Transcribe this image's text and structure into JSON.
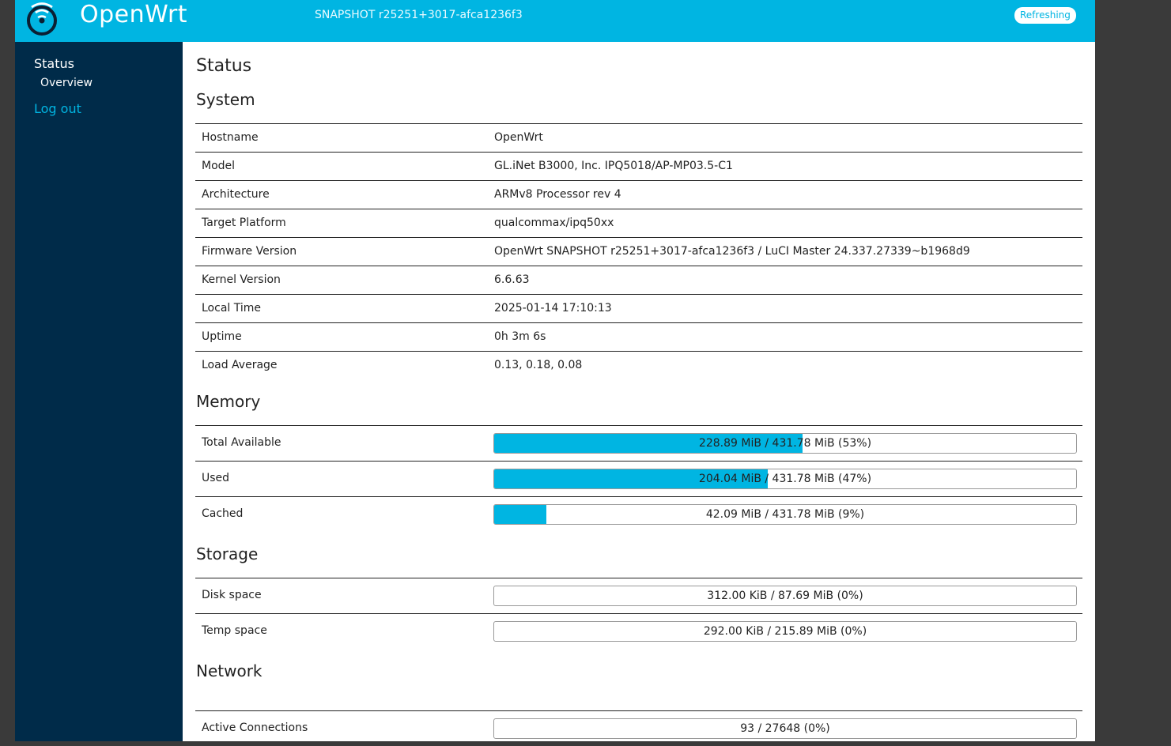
{
  "header": {
    "brand": "OpenWrt",
    "version": "SNAPSHOT r25251+3017-afca1236f3",
    "refresh_badge": "Refreshing",
    "accent_color": "#00b5e2"
  },
  "sidebar": {
    "status": "Status",
    "overview": "Overview",
    "logout": "Log out"
  },
  "main": {
    "title": "Status",
    "system": {
      "heading": "System",
      "rows": [
        {
          "label": "Hostname",
          "value": "OpenWrt"
        },
        {
          "label": "Model",
          "value": "GL.iNet B3000, Inc. IPQ5018/AP-MP03.5-C1"
        },
        {
          "label": "Architecture",
          "value": "ARMv8 Processor rev 4"
        },
        {
          "label": "Target Platform",
          "value": "qualcommax/ipq50xx"
        },
        {
          "label": "Firmware Version",
          "value": "OpenWrt SNAPSHOT r25251+3017-afca1236f3 / LuCI Master 24.337.27339~b1968d9"
        },
        {
          "label": "Kernel Version",
          "value": "6.6.63"
        },
        {
          "label": "Local Time",
          "value": "2025-01-14 17:10:13"
        },
        {
          "label": "Uptime",
          "value": "0h 3m 6s"
        },
        {
          "label": "Load Average",
          "value": "0.13, 0.18, 0.08"
        }
      ]
    },
    "memory": {
      "heading": "Memory",
      "rows": [
        {
          "label": "Total Available",
          "text": "228.89 MiB / 431.78 MiB (53%)",
          "fraction": 0.53
        },
        {
          "label": "Used",
          "text": "204.04 MiB / 431.78 MiB (47%)",
          "fraction": 0.47
        },
        {
          "label": "Cached",
          "text": "42.09 MiB / 431.78 MiB (9%)",
          "fraction": 0.09
        }
      ]
    },
    "storage": {
      "heading": "Storage",
      "rows": [
        {
          "label": "Disk space",
          "text": "312.00 KiB / 87.69 MiB (0%)",
          "fraction": 0.0
        },
        {
          "label": "Temp space",
          "text": "292.00 KiB / 215.89 MiB (0%)",
          "fraction": 0.0
        }
      ]
    },
    "network": {
      "heading": "Network",
      "rows": [
        {
          "label": "Active Connections",
          "text": "93 / 27648 (0%)",
          "fraction": 0.0
        }
      ]
    }
  }
}
